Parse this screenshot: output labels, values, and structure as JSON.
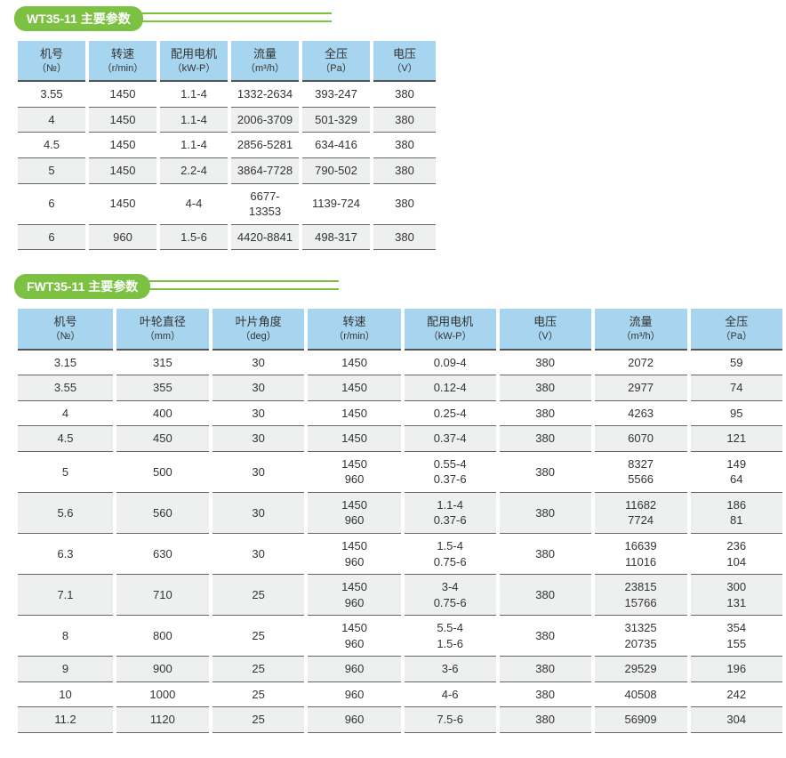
{
  "section1": {
    "title": "WT35-11 主要参数",
    "headers": [
      {
        "label": "机号",
        "unit": "（№）"
      },
      {
        "label": "转速",
        "unit": "（r/min）"
      },
      {
        "label": "配用电机",
        "unit": "（kW-P）"
      },
      {
        "label": "流量",
        "unit": "（m³/h）"
      },
      {
        "label": "全压",
        "unit": "（Pa）"
      },
      {
        "label": "电压",
        "unit": "（V）"
      }
    ],
    "rows": [
      {
        "shade": false,
        "cells": [
          "3.55",
          "1450",
          "1.1-4",
          "1332-2634",
          "393-247",
          "380"
        ]
      },
      {
        "shade": true,
        "cells": [
          "4",
          "1450",
          "1.1-4",
          "2006-3709",
          "501-329",
          "380"
        ]
      },
      {
        "shade": false,
        "cells": [
          "4.5",
          "1450",
          "1.1-4",
          "2856-5281",
          "634-416",
          "380"
        ]
      },
      {
        "shade": true,
        "cells": [
          "5",
          "1450",
          "2.2-4",
          "3864-7728",
          "790-502",
          "380"
        ]
      },
      {
        "shade": false,
        "cells": [
          "6",
          "1450",
          "4-4",
          "6677-13353",
          "1139-724",
          "380"
        ]
      },
      {
        "shade": true,
        "cells": [
          "6",
          "960",
          "1.5-6",
          "4420-8841",
          "498-317",
          "380"
        ]
      }
    ]
  },
  "section2": {
    "title": "FWT35-11 主要参数",
    "headers": [
      {
        "label": "机号",
        "unit": "（№）"
      },
      {
        "label": "叶轮直径",
        "unit": "（mm）"
      },
      {
        "label": "叶片角度",
        "unit": "（deg）"
      },
      {
        "label": "转速",
        "unit": "（r/min）"
      },
      {
        "label": "配用电机",
        "unit": "（kW-P）"
      },
      {
        "label": "电压",
        "unit": "（V）"
      },
      {
        "label": "流量",
        "unit": "（m³/h）"
      },
      {
        "label": "全压",
        "unit": "（Pa）"
      }
    ],
    "rows": [
      {
        "shade": false,
        "cells": [
          "3.15",
          "315",
          "30",
          "1450",
          "0.09-4",
          "380",
          "2072",
          "59"
        ]
      },
      {
        "shade": true,
        "cells": [
          "3.55",
          "355",
          "30",
          "1450",
          "0.12-4",
          "380",
          "2977",
          "74"
        ]
      },
      {
        "shade": false,
        "cells": [
          "4",
          "400",
          "30",
          "1450",
          "0.25-4",
          "380",
          "4263",
          "95"
        ]
      },
      {
        "shade": true,
        "cells": [
          "4.5",
          "450",
          "30",
          "1450",
          "0.37-4",
          "380",
          "6070",
          "121"
        ]
      },
      {
        "shade": false,
        "cells": [
          "5",
          "500",
          "30",
          "1450\n960",
          "0.55-4\n0.37-6",
          "380",
          "8327\n5566",
          "149\n64"
        ]
      },
      {
        "shade": true,
        "cells": [
          "5.6",
          "560",
          "30",
          "1450\n960",
          "1.1-4\n0.37-6",
          "380",
          "11682\n7724",
          "186\n81"
        ]
      },
      {
        "shade": false,
        "cells": [
          "6.3",
          "630",
          "30",
          "1450\n960",
          "1.5-4\n0.75-6",
          "380",
          "16639\n11016",
          "236\n104"
        ]
      },
      {
        "shade": true,
        "cells": [
          "7.1",
          "710",
          "25",
          "1450\n960",
          "3-4\n0.75-6",
          "380",
          "23815\n15766",
          "300\n131"
        ]
      },
      {
        "shade": false,
        "cells": [
          "8",
          "800",
          "25",
          "1450\n960",
          "5.5-4\n1.5-6",
          "380",
          "31325\n20735",
          "354\n155"
        ]
      },
      {
        "shade": true,
        "cells": [
          "9",
          "900",
          "25",
          "960",
          "3-6",
          "380",
          "29529",
          "196"
        ]
      },
      {
        "shade": false,
        "cells": [
          "10",
          "1000",
          "25",
          "960",
          "4-6",
          "380",
          "40508",
          "242"
        ]
      },
      {
        "shade": true,
        "cells": [
          "11.2",
          "1120",
          "25",
          "960",
          "7.5-6",
          "380",
          "56909",
          "304"
        ]
      }
    ]
  },
  "colors": {
    "header_bg": "#a7d4ee",
    "pill_bg": "#7cc142",
    "shade_bg": "#eef0ef",
    "row_border": "#666666"
  }
}
